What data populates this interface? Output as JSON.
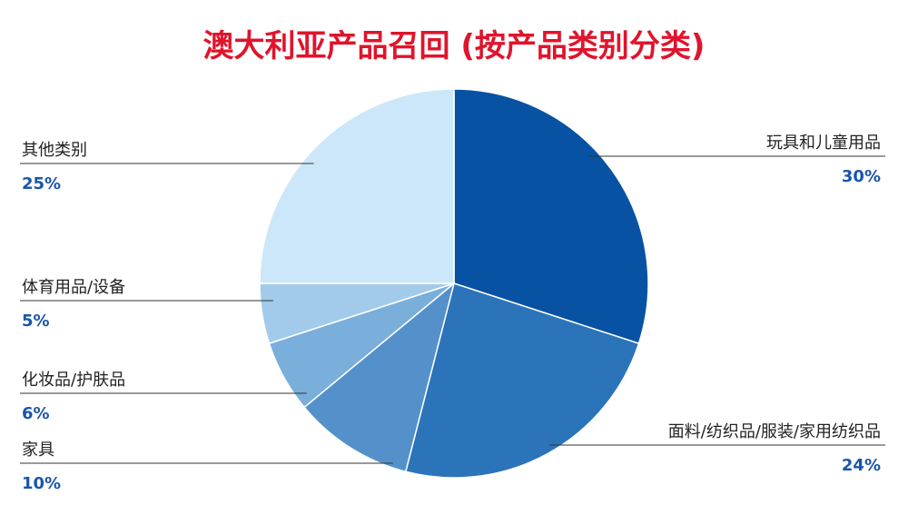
{
  "chart_data": {
    "type": "pie",
    "title": "澳大利亚产品召回 (按产品类别分类)",
    "title_color": "#e0142c",
    "percent_color": "#1a56a8",
    "slices": [
      {
        "label": "玩具和儿童用品",
        "value": 30,
        "display": "30%",
        "color": "#0752a3"
      },
      {
        "label": "面料/纺织品/服装/家用纺织品",
        "value": 24,
        "display": "24%",
        "color": "#2b74ba"
      },
      {
        "label": "家具",
        "value": 10,
        "display": "10%",
        "color": "#5491ca"
      },
      {
        "label": "化妆品/护肤品",
        "value": 6,
        "display": "6%",
        "color": "#7aaedb"
      },
      {
        "label": "体育用品/设备",
        "value": 5,
        "display": "5%",
        "color": "#a2cbeb"
      },
      {
        "label": "其他类别",
        "value": 25,
        "display": "25%",
        "color": "#cce7f9"
      }
    ]
  }
}
